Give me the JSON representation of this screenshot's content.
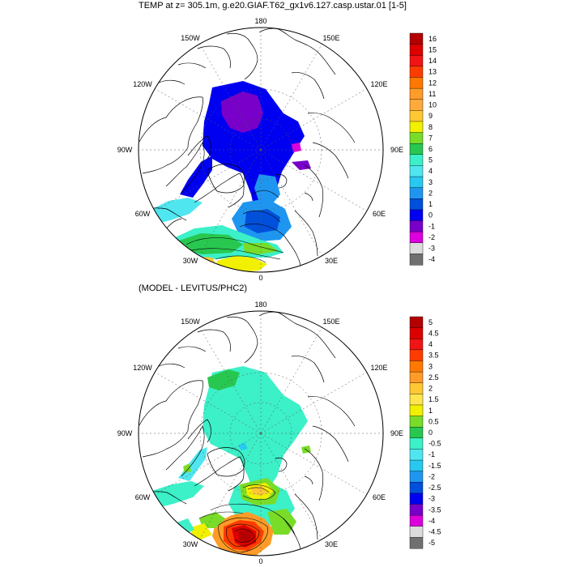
{
  "panels": [
    {
      "title": "TEMP at z= 305.1m, g.e20.GIAF.T62_gx1v6.127.casp.ustar.01 [1-5]",
      "lon_labels": {
        "top": "180",
        "top_left": "150W",
        "top_right": "150E",
        "upper_left": "120W",
        "upper_right": "120E",
        "left": "90W",
        "right": "90E",
        "lower_left": "60W",
        "lower_right": "60E",
        "bottom_left": "30W",
        "bottom_right": "30E",
        "bottom": "0"
      },
      "colorbar": {
        "labels": [
          "16",
          "15",
          "14",
          "13",
          "12",
          "11",
          "10",
          "9",
          "8",
          "7",
          "6",
          "5",
          "4",
          "3",
          "2",
          "1",
          "0",
          "-1",
          "-2",
          "-3",
          "-4"
        ],
        "colors": [
          "#b40000",
          "#dc0000",
          "#f01414",
          "#ff3c00",
          "#ff7800",
          "#ff9b28",
          "#ffaa3c",
          "#ffc832",
          "#f0f000",
          "#78dc28",
          "#28c850",
          "#3cf0c8",
          "#50e6f0",
          "#28c8f0",
          "#1e96f0",
          "#0050dc",
          "#0000f0",
          "#7800c8",
          "#dc00dc",
          "#dcdcdc",
          "#707070"
        ]
      }
    },
    {
      "title": "(MODEL - LEVITUS/PHC2)",
      "lon_labels": {
        "top": "180",
        "top_left": "150W",
        "top_right": "150E",
        "upper_left": "120W",
        "upper_right": "120E",
        "left": "90W",
        "right": "90E",
        "lower_left": "60W",
        "lower_right": "60E",
        "bottom_left": "30W",
        "bottom_right": "30E",
        "bottom": "0"
      },
      "colorbar": {
        "labels": [
          "5",
          "4.5",
          "4",
          "3.5",
          "3",
          "2.5",
          "2",
          "1.5",
          "1",
          "0.5",
          "0",
          "-0.5",
          "-1",
          "-1.5",
          "-2",
          "-2.5",
          "-3",
          "-3.5",
          "-4",
          "-4.5",
          "-5"
        ],
        "colors": [
          "#b40000",
          "#dc0000",
          "#f01414",
          "#ff3c00",
          "#ff7800",
          "#ff9b28",
          "#ffc832",
          "#ffe650",
          "#f0f000",
          "#78dc28",
          "#28c850",
          "#3cf0c8",
          "#50e6f0",
          "#28c8f0",
          "#1e96f0",
          "#0050dc",
          "#0000f0",
          "#7800c8",
          "#dc00dc",
          "#dcdcdc",
          "#707070"
        ]
      }
    }
  ]
}
